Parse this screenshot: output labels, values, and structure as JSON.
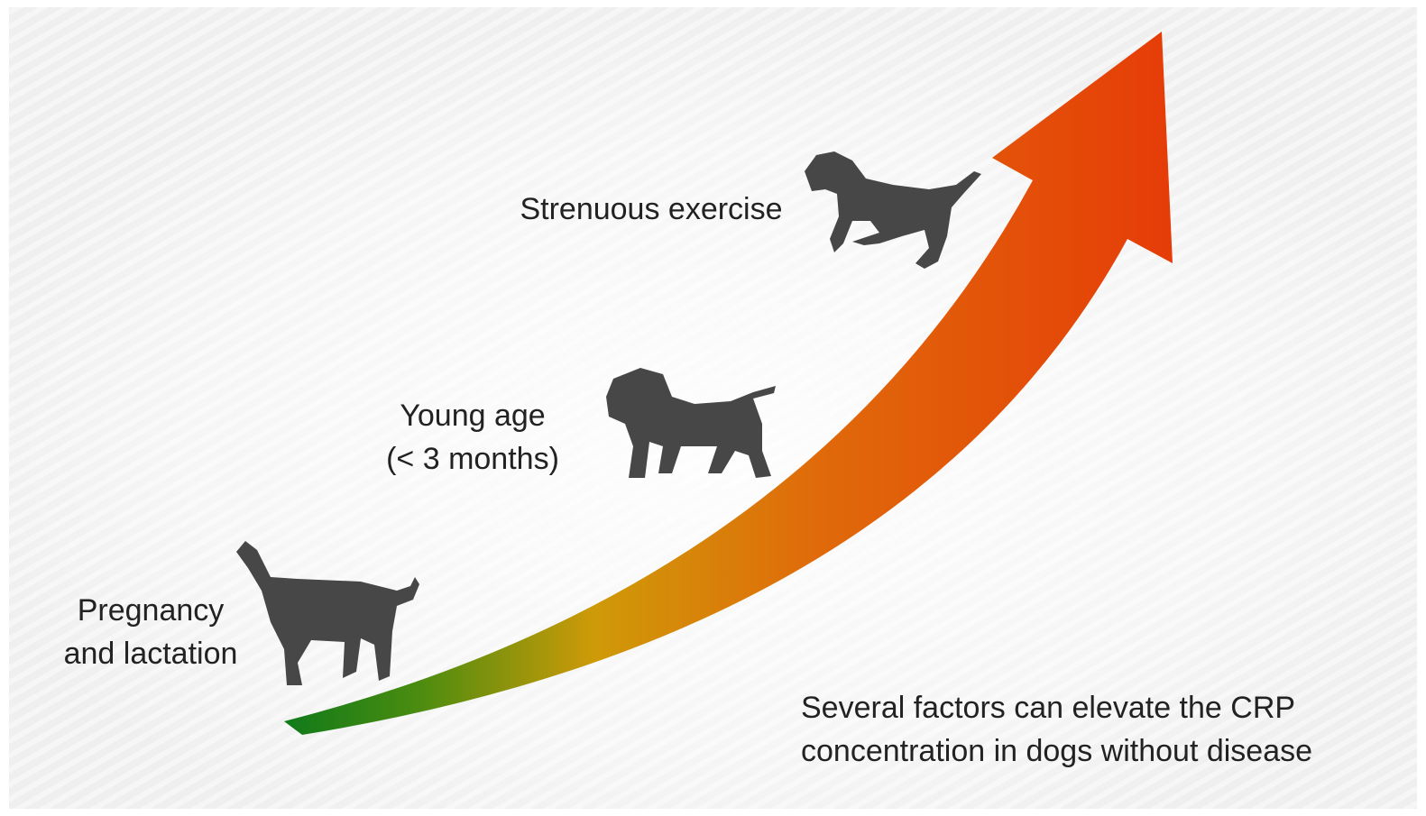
{
  "factors": [
    {
      "lines": [
        "Pregnancy",
        "and lactation"
      ]
    },
    {
      "lines": [
        "Young age",
        "(< 3 months)"
      ]
    },
    {
      "lines": [
        "Strenuous exercise"
      ]
    }
  ],
  "caption": {
    "lines": [
      "Several factors can elevate the CRP",
      "concentration in dogs without disease"
    ]
  }
}
